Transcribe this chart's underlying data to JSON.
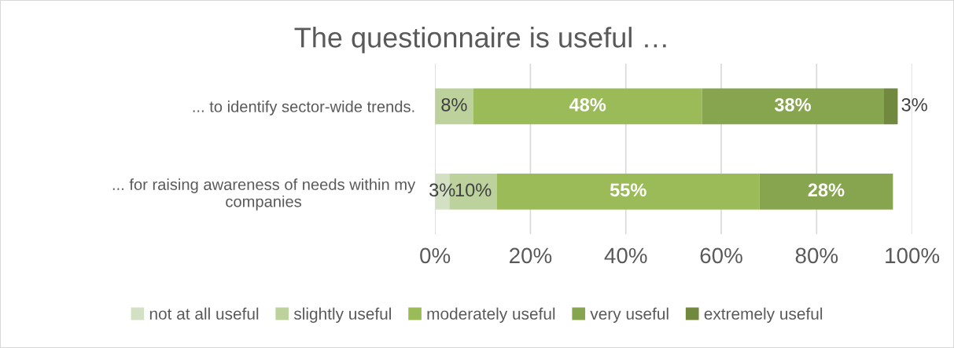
{
  "chart_data": {
    "type": "bar",
    "orientation": "horizontal",
    "stacked": true,
    "title": "The questionnaire is useful …",
    "categories": [
      "... to identify sector-wide trends.",
      "... for raising awareness of needs within my\ncompanies"
    ],
    "series": [
      {
        "name": "not at all useful",
        "color": "#d3e0c4",
        "values": [
          null,
          3
        ],
        "value_labels": [
          null,
          "3%"
        ]
      },
      {
        "name": "slightly useful",
        "color": "#bcd19b",
        "values": [
          8,
          10
        ],
        "value_labels": [
          "8%",
          "10%"
        ]
      },
      {
        "name": "moderately useful",
        "color": "#9bbb59",
        "values": [
          48,
          55
        ],
        "value_labels": [
          "48%",
          "55%"
        ]
      },
      {
        "name": "very useful",
        "color": "#87a44e",
        "values": [
          38,
          28
        ],
        "value_labels": [
          "38%",
          "28%"
        ]
      },
      {
        "name": "extremely useful",
        "color": "#71883f",
        "values": [
          3,
          null
        ],
        "value_labels": [
          "3%",
          null
        ]
      }
    ],
    "xlim": [
      0,
      100
    ],
    "xticks": [
      {
        "value": 0,
        "label": "0%"
      },
      {
        "value": 20,
        "label": "20%"
      },
      {
        "value": 40,
        "label": "40%"
      },
      {
        "value": 60,
        "label": "60%"
      },
      {
        "value": 80,
        "label": "80%"
      },
      {
        "value": 100,
        "label": "100%"
      }
    ],
    "grid": "x",
    "legend": "bottom"
  }
}
